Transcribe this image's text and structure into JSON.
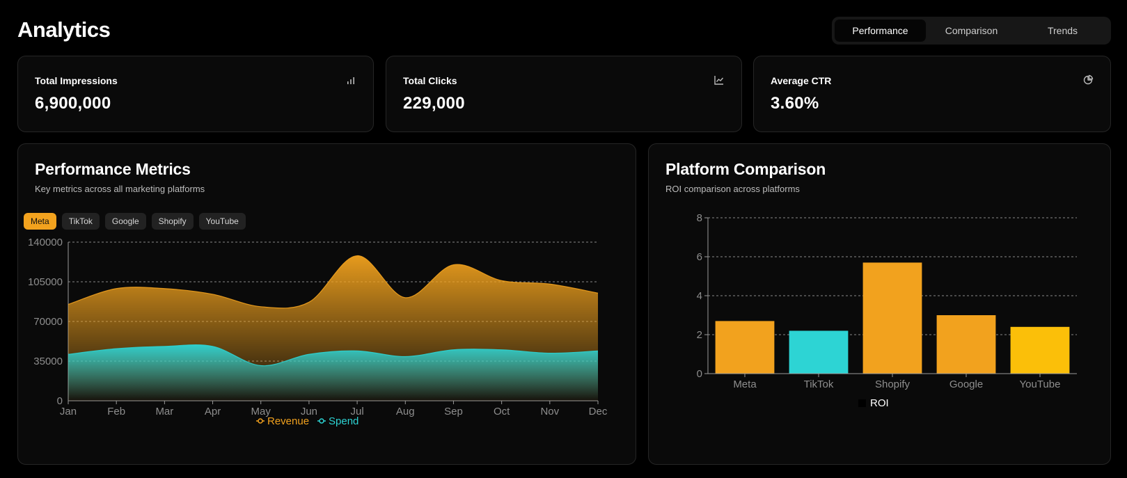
{
  "header": {
    "title": "Analytics"
  },
  "tabs": [
    {
      "label": "Performance",
      "active": true
    },
    {
      "label": "Comparison",
      "active": false
    },
    {
      "label": "Trends",
      "active": false
    }
  ],
  "stats": [
    {
      "label": "Total Impressions",
      "value": "6,900,000",
      "icon": "bar-chart-icon"
    },
    {
      "label": "Total Clicks",
      "value": "229,000",
      "icon": "line-chart-icon"
    },
    {
      "label": "Average CTR",
      "value": "3.60%",
      "icon": "pie-chart-icon"
    }
  ],
  "performance": {
    "title": "Performance Metrics",
    "subtitle": "Key metrics across all marketing platforms",
    "filters": [
      {
        "label": "Meta",
        "active": true
      },
      {
        "label": "TikTok",
        "active": false
      },
      {
        "label": "Google",
        "active": false
      },
      {
        "label": "Shopify",
        "active": false
      },
      {
        "label": "YouTube",
        "active": false
      }
    ]
  },
  "comparison": {
    "title": "Platform Comparison",
    "subtitle": "ROI comparison across platforms"
  },
  "colors": {
    "revenue": "#f2a21e",
    "spend": "#2dd4d4",
    "shopify": "#f2a21e",
    "youtube": "#fbbf09"
  },
  "chart_data": [
    {
      "type": "area",
      "categories": [
        "Jan",
        "Feb",
        "Mar",
        "Apr",
        "May",
        "Jun",
        "Jul",
        "Aug",
        "Sep",
        "Oct",
        "Nov",
        "Dec"
      ],
      "series": [
        {
          "name": "Revenue",
          "values": [
            85000,
            99000,
            99000,
            94000,
            83000,
            87000,
            128000,
            91000,
            120000,
            106000,
            103000,
            95000
          ]
        },
        {
          "name": "Spend",
          "values": [
            41000,
            46000,
            48000,
            48000,
            31000,
            41000,
            44000,
            39000,
            45000,
            45000,
            42000,
            44000
          ]
        }
      ],
      "yticks": [
        0,
        35000,
        70000,
        105000,
        140000
      ],
      "ylim": [
        0,
        140000
      ],
      "legend": [
        "Revenue",
        "Spend"
      ],
      "legend_position": "bottom"
    },
    {
      "type": "bar",
      "categories": [
        "Meta",
        "TikTok",
        "Shopify",
        "Google",
        "YouTube"
      ],
      "values": [
        2.7,
        2.2,
        5.7,
        3.0,
        2.4
      ],
      "bar_colors": [
        "#f2a21e",
        "#2dd4d4",
        "#f2a21e",
        "#f2a21e",
        "#fbbf09"
      ],
      "yticks": [
        0,
        2,
        4,
        6,
        8
      ],
      "ylim": [
        0,
        8
      ],
      "legend": [
        "ROI"
      ],
      "legend_position": "bottom"
    }
  ]
}
